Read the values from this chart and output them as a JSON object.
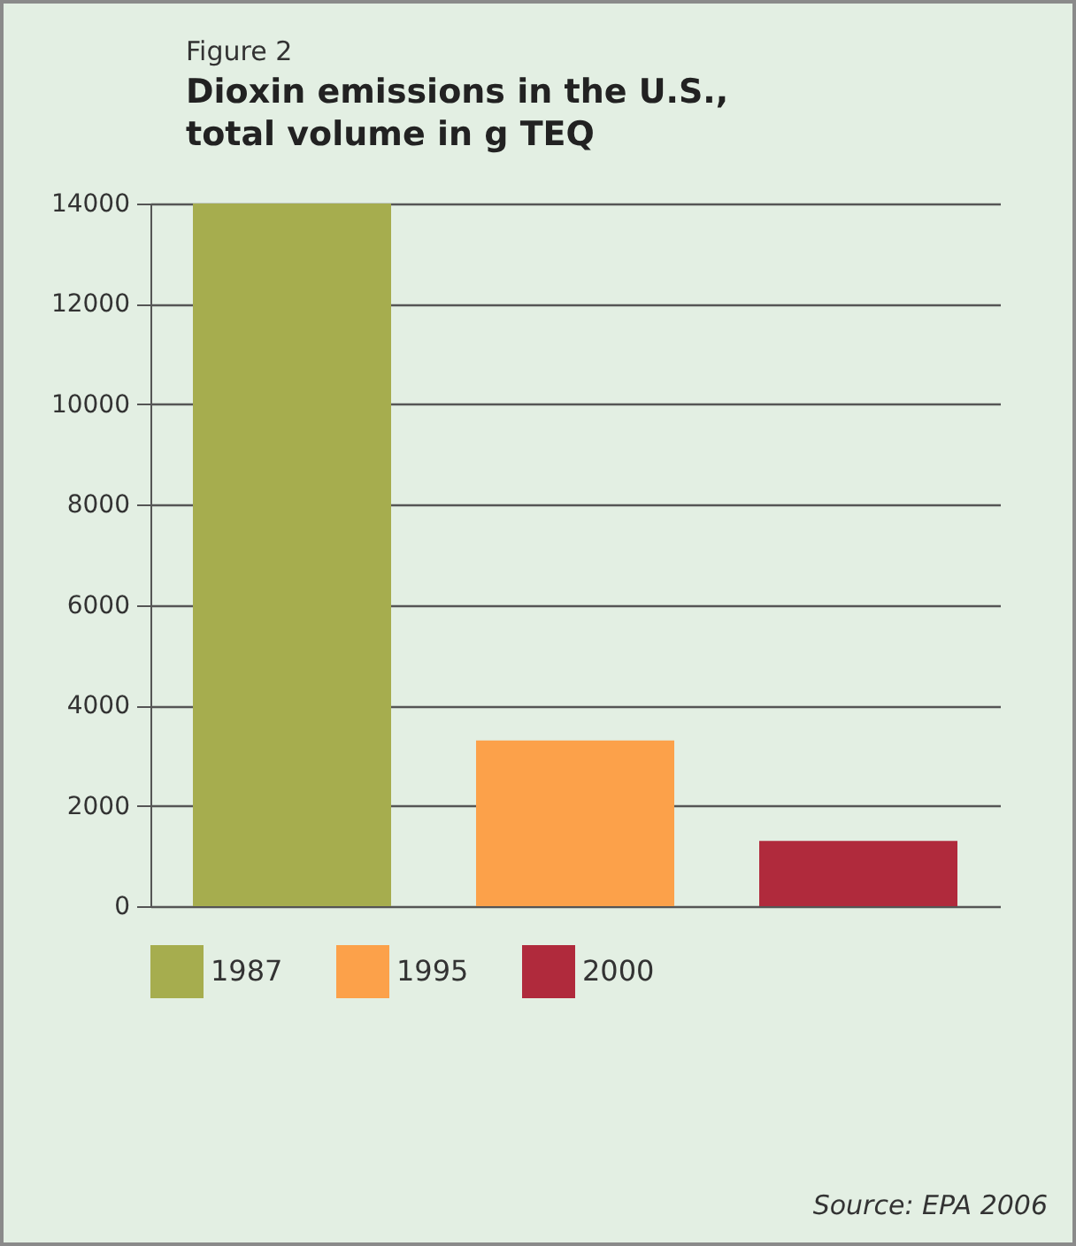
{
  "chart_data": {
    "type": "bar",
    "title": "Figure 2",
    "subtitle": "Dioxin emissions in the U.S., total volume in g TEQ",
    "categories": [
      null,
      null,
      null
    ],
    "series": [
      {
        "name": "1987",
        "color": "#a6ad4e",
        "values": [
          14000,
          null,
          null
        ]
      },
      {
        "name": "1995",
        "color": "#fca14a",
        "values": [
          null,
          3300,
          null
        ]
      },
      {
        "name": "2000",
        "color": "#b02a3c",
        "values": [
          null,
          null,
          1300
        ]
      }
    ],
    "ylim": [
      0,
      14000
    ],
    "yticks": [
      0,
      2000,
      4000,
      6000,
      8000,
      10000,
      12000,
      14000
    ],
    "grid": "y",
    "legend": "bottom",
    "tick_labels": "y",
    "annotations": [
      "Source: EPA 2006"
    ]
  }
}
